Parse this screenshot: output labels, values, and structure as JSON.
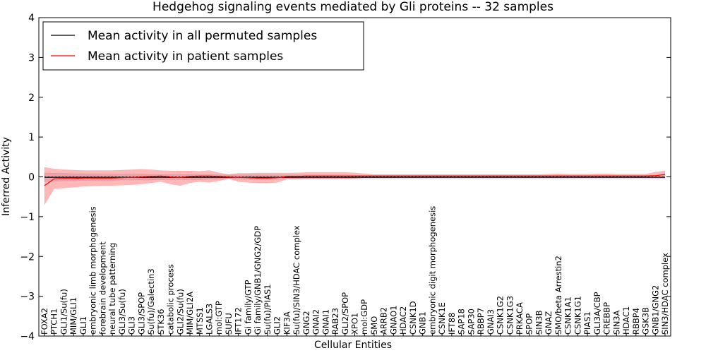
{
  "chart_data": {
    "type": "line",
    "title": "Hedgehog signaling events mediated by Gli proteins -- 32 samples",
    "xlabel": "Cellular Entities",
    "ylabel": "Inferred Activity",
    "ylim": [
      -4,
      4
    ],
    "yticks": [
      -4,
      -3,
      -2,
      -1,
      0,
      1,
      2,
      3,
      4
    ],
    "grid": false,
    "legend_position": "top-left",
    "categories": [
      "FOXA2",
      "PTCH1",
      "GLI1/Su(fu)",
      "MIM/GLI1",
      "GLI1",
      "embryonic limb morphogenesis",
      "forebrain development",
      "neural tube patterning",
      "GLI3/Su(fu)",
      "GLI3",
      "GLI3/SPOP",
      "Su(fu)/Galectin3",
      "STK36",
      "catabolic process",
      "GLI2/Su(fu)",
      "MIM/GLI2A",
      "MTSS1",
      "LGALS3",
      "mol:GTP",
      "SUFU",
      "IFT172",
      "Gi family/GTP",
      "Gi family/GNB1/GNG2/GDP",
      "Su(fu)/PIAS1",
      "GLI2",
      "KIF3A",
      "Su(fu)/SIN3/HDAC complex",
      "GNG2",
      "GNAI2",
      "GNAI1",
      "RAB23",
      "GLI2/SPOP",
      "XPO1",
      "mol:GDP",
      "SMO",
      "ARRB2",
      "GNAO1",
      "HDAC2",
      "CSNK1D",
      "GNB1",
      "embryonic digit morphogenesis",
      "CSNK1E",
      "IFT88",
      "SAP18",
      "SAP30",
      "RBBP7",
      "GNAI3",
      "CSNK1G2",
      "CSNK1G3",
      "PRKACA",
      "SPOP",
      "SIN3B",
      "GNAZ",
      "SMO/beta Arrestin2",
      "CSNK1A1",
      "CSNK1G1",
      "PIAS1",
      "GLI3A/CBP",
      "CREBBP",
      "SIN3A",
      "HDAC1",
      "RBBP4",
      "GSK3B",
      "GNB1/GNG2",
      "SIN3/HDAC complex"
    ],
    "series": [
      {
        "name": "Mean activity in all permuted samples",
        "color": "#000000",
        "values": [
          -0.01,
          -0.01,
          -0.01,
          -0.01,
          -0.01,
          -0.01,
          -0.01,
          -0.01,
          -0.01,
          -0.01,
          -0.01,
          -0.01,
          -0.01,
          -0.01,
          -0.01,
          -0.01,
          -0.01,
          -0.01,
          -0.01,
          -0.01,
          -0.01,
          -0.01,
          -0.01,
          -0.01,
          -0.01,
          -0.01,
          -0.01,
          -0.01,
          -0.01,
          -0.01,
          -0.01,
          -0.01,
          -0.01,
          -0.01,
          -0.01,
          -0.01,
          -0.01,
          -0.01,
          -0.01,
          -0.01,
          -0.01,
          -0.01,
          -0.01,
          -0.01,
          -0.01,
          -0.01,
          -0.01,
          -0.01,
          -0.01,
          -0.01,
          -0.01,
          -0.01,
          -0.01,
          -0.01,
          -0.01,
          -0.01,
          -0.01,
          -0.01,
          -0.01,
          -0.01,
          -0.01,
          -0.01,
          -0.01,
          -0.01,
          -0.01
        ],
        "lower": [
          -0.12,
          -0.11,
          -0.1,
          -0.1,
          -0.09,
          -0.09,
          -0.09,
          -0.09,
          -0.08,
          -0.08,
          -0.08,
          -0.08,
          -0.07,
          -0.07,
          -0.07,
          -0.07,
          -0.07,
          -0.06,
          -0.06,
          -0.06,
          -0.06,
          -0.06,
          -0.06,
          -0.06,
          -0.05,
          -0.05,
          -0.05,
          -0.05,
          -0.05,
          -0.05,
          -0.05,
          -0.05,
          -0.05,
          -0.05,
          -0.05,
          -0.05,
          -0.05,
          -0.05,
          -0.05,
          -0.05,
          -0.05,
          -0.05,
          -0.05,
          -0.05,
          -0.05,
          -0.05,
          -0.05,
          -0.05,
          -0.05,
          -0.05,
          -0.05,
          -0.05,
          -0.05,
          -0.05,
          -0.05,
          -0.05,
          -0.05,
          -0.05,
          -0.05,
          -0.05,
          -0.05,
          -0.05,
          -0.05,
          -0.05,
          -0.05
        ],
        "upper": [
          0.1,
          0.09,
          0.09,
          0.08,
          0.08,
          0.08,
          0.07,
          0.07,
          0.07,
          0.07,
          0.07,
          0.06,
          0.06,
          0.06,
          0.06,
          0.06,
          0.06,
          0.06,
          0.05,
          0.05,
          0.05,
          0.05,
          0.05,
          0.05,
          0.05,
          0.05,
          0.05,
          0.05,
          0.05,
          0.05,
          0.05,
          0.05,
          0.04,
          0.04,
          0.04,
          0.04,
          0.04,
          0.04,
          0.04,
          0.04,
          0.04,
          0.04,
          0.04,
          0.04,
          0.04,
          0.04,
          0.04,
          0.04,
          0.04,
          0.04,
          0.04,
          0.04,
          0.04,
          0.04,
          0.04,
          0.04,
          0.04,
          0.04,
          0.04,
          0.04,
          0.04,
          0.04,
          0.04,
          0.04,
          0.04
        ]
      },
      {
        "name": "Mean activity in patient samples",
        "color": "#ff0000",
        "values": [
          -0.22,
          -0.05,
          -0.04,
          -0.04,
          -0.03,
          -0.03,
          -0.03,
          -0.03,
          -0.02,
          -0.01,
          0.0,
          0.01,
          0.02,
          0.0,
          -0.01,
          0.01,
          0.02,
          0.02,
          0.01,
          0.0,
          -0.01,
          -0.02,
          -0.03,
          -0.03,
          -0.02,
          0.01,
          0.01,
          0.02,
          0.02,
          0.02,
          0.02,
          0.02,
          0.02,
          0.02,
          0.02,
          0.02,
          0.02,
          0.02,
          0.02,
          0.02,
          0.02,
          0.02,
          0.02,
          0.02,
          0.02,
          0.02,
          0.02,
          0.02,
          0.02,
          0.02,
          0.02,
          0.02,
          0.02,
          0.02,
          0.02,
          0.02,
          0.02,
          0.02,
          0.02,
          0.02,
          0.02,
          0.02,
          0.02,
          0.03,
          0.06
        ],
        "lower": [
          -0.7,
          -0.3,
          -0.28,
          -0.26,
          -0.24,
          -0.23,
          -0.22,
          -0.22,
          -0.21,
          -0.2,
          -0.18,
          -0.15,
          -0.12,
          -0.18,
          -0.22,
          -0.15,
          -0.12,
          -0.14,
          -0.1,
          -0.04,
          -0.12,
          -0.14,
          -0.15,
          -0.15,
          -0.14,
          -0.06,
          -0.06,
          -0.05,
          -0.05,
          -0.05,
          -0.05,
          -0.05,
          -0.04,
          -0.02,
          -0.02,
          -0.02,
          -0.02,
          -0.01,
          -0.01,
          -0.01,
          -0.01,
          -0.01,
          -0.01,
          -0.01,
          -0.01,
          -0.01,
          -0.01,
          -0.01,
          -0.01,
          -0.01,
          -0.01,
          -0.01,
          -0.01,
          -0.01,
          -0.01,
          -0.01,
          -0.01,
          -0.01,
          -0.01,
          -0.01,
          -0.01,
          -0.01,
          -0.01,
          0.0,
          0.01
        ],
        "upper": [
          0.24,
          0.2,
          0.18,
          0.17,
          0.16,
          0.16,
          0.16,
          0.16,
          0.17,
          0.18,
          0.19,
          0.18,
          0.16,
          0.15,
          0.15,
          0.15,
          0.14,
          0.16,
          0.1,
          0.06,
          0.09,
          0.09,
          0.1,
          0.1,
          0.1,
          0.1,
          0.1,
          0.11,
          0.11,
          0.11,
          0.11,
          0.11,
          0.1,
          0.08,
          0.06,
          0.06,
          0.06,
          0.06,
          0.06,
          0.06,
          0.06,
          0.06,
          0.06,
          0.06,
          0.06,
          0.06,
          0.06,
          0.06,
          0.06,
          0.06,
          0.06,
          0.06,
          0.07,
          0.08,
          0.07,
          0.07,
          0.07,
          0.08,
          0.08,
          0.07,
          0.07,
          0.07,
          0.07,
          0.12,
          0.15
        ]
      }
    ]
  }
}
